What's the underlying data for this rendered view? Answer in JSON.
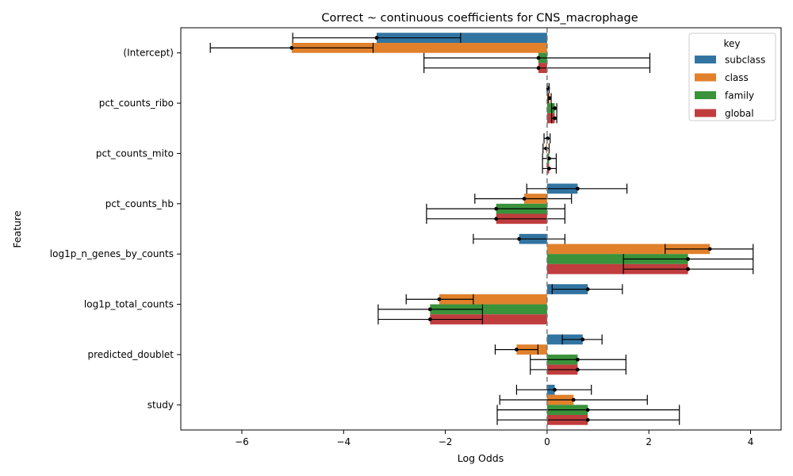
{
  "chart_data": {
    "type": "bar",
    "orientation": "horizontal",
    "title": "Correct ~ continuous coefficients for CNS_macrophage",
    "xlabel": "Log Odds",
    "ylabel": "Feature",
    "xlim": [
      -7.2,
      4.6
    ],
    "xticks": [
      -6,
      -4,
      -2,
      0,
      2,
      4
    ],
    "xtick_labels": [
      "−6",
      "−4",
      "−2",
      "0",
      "2",
      "4"
    ],
    "reference_line": 0,
    "grid": false,
    "legend": {
      "title": "key",
      "placement": "top-right"
    },
    "categories": [
      "(Intercept)",
      "pct_counts_ribo",
      "pct_counts_mito",
      "pct_counts_hb",
      "log1p_n_genes_by_counts",
      "log1p_total_counts",
      "predicted_doublet",
      "study"
    ],
    "series": [
      {
        "name": "subclass",
        "color": "#3274a1",
        "values": [
          -3.35,
          0.02,
          0.01,
          0.6,
          -0.55,
          0.8,
          0.7,
          0.15
        ],
        "ci_low": [
          -5.0,
          0.0,
          -0.06,
          -0.4,
          -1.45,
          0.1,
          0.3,
          -0.6
        ],
        "ci_high": [
          -1.7,
          0.04,
          0.06,
          1.57,
          0.35,
          1.48,
          1.08,
          0.87
        ]
      },
      {
        "name": "class",
        "color": "#e1812c",
        "values": [
          -5.02,
          0.05,
          -0.02,
          -0.45,
          3.2,
          -2.12,
          -0.6,
          0.52
        ],
        "ci_low": [
          -6.62,
          0.02,
          -0.08,
          -1.42,
          2.32,
          -2.77,
          -1.02,
          -0.93
        ],
        "ci_high": [
          -3.42,
          0.08,
          0.04,
          0.48,
          4.05,
          -1.45,
          -0.18,
          1.97
        ]
      },
      {
        "name": "family",
        "color": "#3a923a",
        "values": [
          -0.17,
          0.15,
          0.04,
          -1.0,
          2.77,
          -2.3,
          0.6,
          0.8
        ],
        "ci_low": [
          -2.42,
          0.09,
          -0.09,
          -2.37,
          1.5,
          -3.32,
          -0.33,
          -0.98
        ],
        "ci_high": [
          2.02,
          0.19,
          0.18,
          0.35,
          4.05,
          -1.27,
          1.55,
          2.6
        ]
      },
      {
        "name": "global",
        "color": "#c03d3e",
        "values": [
          -0.17,
          0.15,
          0.04,
          -1.0,
          2.77,
          -2.3,
          0.6,
          0.8
        ],
        "ci_low": [
          -2.42,
          0.09,
          -0.09,
          -2.37,
          1.5,
          -3.32,
          -0.33,
          -0.98
        ],
        "ci_high": [
          2.02,
          0.19,
          0.18,
          0.35,
          4.05,
          -1.27,
          1.55,
          2.6
        ]
      }
    ]
  }
}
